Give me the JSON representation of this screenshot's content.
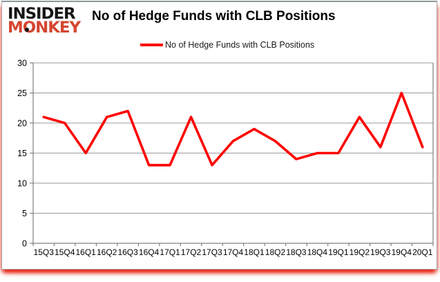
{
  "logo": {
    "line1": "INSIDER",
    "line2": "MONKEY"
  },
  "header": {
    "title": "No of Hedge Funds with CLB Positions"
  },
  "legend": {
    "label": "No of Hedge Funds with CLB Positions"
  },
  "colors": {
    "series": "#FE0000",
    "grid": "#9a9a9a",
    "axis": "#7f7f7f",
    "tick_text": "#000000",
    "logo_insider": "#151515",
    "logo_monkey": "#D5452F",
    "bottom_shadow": "#E81907"
  },
  "chart_data": {
    "type": "line",
    "title": "No of Hedge Funds with CLB Positions",
    "categories": [
      "15Q3",
      "15Q4",
      "16Q1",
      "16Q2",
      "16Q3",
      "16Q4",
      "17Q1",
      "17Q2",
      "17Q3",
      "17Q4",
      "18Q1",
      "18Q2",
      "18Q3",
      "18Q4",
      "19Q1",
      "19Q2",
      "19Q3",
      "19Q4",
      "20Q1"
    ],
    "series": [
      {
        "name": "No of Hedge Funds with CLB Positions",
        "color": "#FE0000",
        "values": [
          21,
          20,
          15,
          21,
          22,
          13,
          13,
          21,
          13,
          17,
          19,
          17,
          14,
          15,
          15,
          21,
          16,
          25,
          16
        ]
      }
    ],
    "xlabel": "",
    "ylabel": "",
    "ylim": [
      0,
      30
    ],
    "yticks": [
      0,
      5,
      10,
      15,
      20,
      25,
      30
    ],
    "grid": "horizontal",
    "legend_position": "top"
  }
}
